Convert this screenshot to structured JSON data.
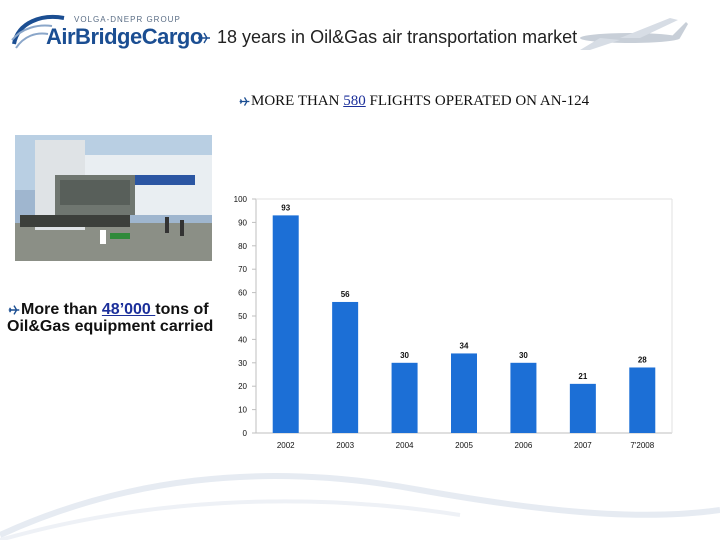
{
  "brand": {
    "group_text": "VOLGA-DNEPR GROUP",
    "name": "AirBridgeCargo",
    "color": "#1b4e92"
  },
  "header": {
    "text": "18 years in Oil&Gas air transportation market",
    "bullet_icon": "plane-icon"
  },
  "headline": {
    "prefix": "MORE THAN ",
    "number": "580",
    "suffix": " FLIGHTS OPERATED ON AN-124"
  },
  "left_stat": {
    "prefix": "More than ",
    "number": "48’000 ",
    "suffix": "tons of Oil&Gas equipment carried"
  },
  "chart_data": {
    "type": "bar",
    "title": "",
    "xlabel": "",
    "ylabel": "",
    "categories": [
      "2002",
      "2003",
      "2004",
      "2005",
      "2006",
      "2007",
      "7'2008"
    ],
    "values": [
      93,
      56,
      30,
      34,
      30,
      21,
      28
    ],
    "data_labels": [
      "93",
      "56",
      "30",
      "34",
      "30",
      "21",
      "28"
    ],
    "ylim": [
      0,
      100
    ],
    "yticks": [
      "0",
      "10",
      "20",
      "30",
      "40",
      "50",
      "60",
      "70",
      "80",
      "90",
      "100"
    ],
    "ytick_values": [
      0,
      10,
      20,
      30,
      40,
      50,
      60,
      70,
      80,
      90,
      100
    ],
    "grid": false,
    "bar_color": "#1c6fd6"
  }
}
